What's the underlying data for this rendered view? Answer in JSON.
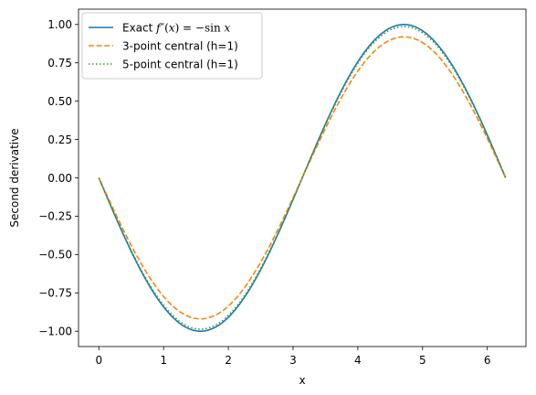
{
  "chart_data": {
    "type": "line",
    "xlabel": "x",
    "ylabel": "Second derivative",
    "xlim": [
      -0.314,
      6.597
    ],
    "ylim": [
      -1.1,
      1.1
    ],
    "xticks": [
      "0",
      "1",
      "2",
      "3",
      "4",
      "5",
      "6"
    ],
    "yticks": [
      "1.00",
      "0.75",
      "0.50",
      "0.25",
      "0.00",
      "−0.25",
      "−0.50",
      "−0.75",
      "−1.00"
    ],
    "grid": false,
    "legend_position": "upper-left",
    "x_range": [
      0,
      6.2832
    ],
    "series": [
      {
        "name": "Exact f″(x) = −sin x",
        "legend_parts": [
          "Exact ",
          "f",
          "″(",
          "x",
          ") = −sin ",
          "x"
        ],
        "formula": "-sin(x)",
        "color": "#1f77b4",
        "style": "solid",
        "peak": 1.0
      },
      {
        "name": "3-point central (h=1)",
        "formula": "-sin(x) * 0.9194",
        "color": "#ff7f0e",
        "style": "dashed",
        "peak": 0.9194
      },
      {
        "name": "5-point central (h=1)",
        "formula": "-sin(x) * 0.9866",
        "color": "#2ca02c",
        "style": "dotted",
        "peak": 0.9866
      }
    ]
  }
}
